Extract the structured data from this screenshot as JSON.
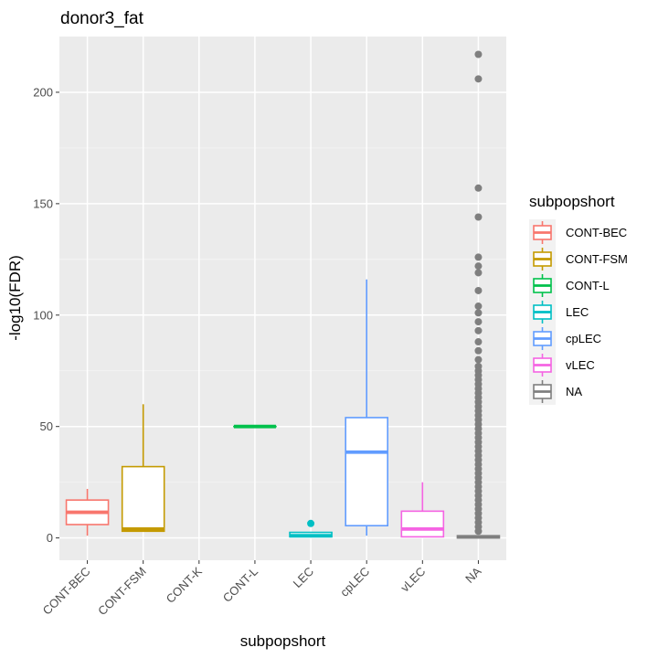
{
  "chart_data": {
    "type": "box",
    "title": "donor3_fat",
    "xlabel": "subpopshort",
    "ylabel": "-log10(FDR)",
    "ylim": [
      -10,
      225
    ],
    "yticks": [
      0,
      50,
      100,
      150,
      200
    ],
    "categories": [
      "CONT-BEC",
      "CONT-FSM",
      "CONT-K",
      "CONT-L",
      "LEC",
      "cpLEC",
      "vLEC",
      "NA"
    ],
    "legend": {
      "title": "subpopshort",
      "position": "right",
      "entries": [
        "CONT-BEC",
        "CONT-FSM",
        "CONT-L",
        "LEC",
        "cpLEC",
        "vLEC",
        "NA"
      ]
    },
    "colors": {
      "CONT-BEC": "#F8766D",
      "CONT-FSM": "#C49A00",
      "CONT-L": "#00C14B",
      "LEC": "#00BFC4",
      "cpLEC": "#619CFF",
      "vLEC": "#F564E3",
      "NA": "#7F7F7F"
    },
    "panel_background": "#EBEBEB",
    "grid": true,
    "boxes": [
      {
        "category": "CONT-BEC",
        "min": 1,
        "q1": 6,
        "median": 11.5,
        "q3": 17,
        "max": 22,
        "outliers": []
      },
      {
        "category": "CONT-FSM",
        "min": 3,
        "q1": 3,
        "median": 4,
        "q3": 32,
        "max": 60,
        "outliers": []
      },
      {
        "category": "CONT-L",
        "min": 50,
        "q1": 50,
        "median": 50,
        "q3": 50,
        "max": 50,
        "outliers": []
      },
      {
        "category": "LEC",
        "min": 0.5,
        "q1": 0.5,
        "median": 1,
        "q3": 2.5,
        "max": 2.5,
        "outliers": [
          6.5
        ]
      },
      {
        "category": "cpLEC",
        "min": 1,
        "q1": 5.5,
        "median": 38.5,
        "q3": 54,
        "max": 116,
        "outliers": []
      },
      {
        "category": "vLEC",
        "min": 0.5,
        "q1": 0.5,
        "median": 4,
        "q3": 12,
        "max": 25,
        "outliers": []
      },
      {
        "category": "NA",
        "min": 0,
        "q1": 0,
        "median": 0.5,
        "q3": 1,
        "max": 1,
        "outliers": [
          217,
          206,
          157,
          144,
          126,
          122,
          119,
          111,
          104,
          101,
          97,
          93,
          88,
          84,
          80,
          77,
          75,
          73,
          71,
          69,
          67,
          65,
          63,
          61,
          59,
          57,
          55,
          53,
          51,
          49,
          47,
          45,
          43,
          41,
          39,
          37,
          35,
          33,
          31,
          29,
          27,
          25,
          23,
          21,
          19,
          17,
          15,
          13,
          11,
          9,
          7,
          5,
          3
        ]
      }
    ]
  }
}
